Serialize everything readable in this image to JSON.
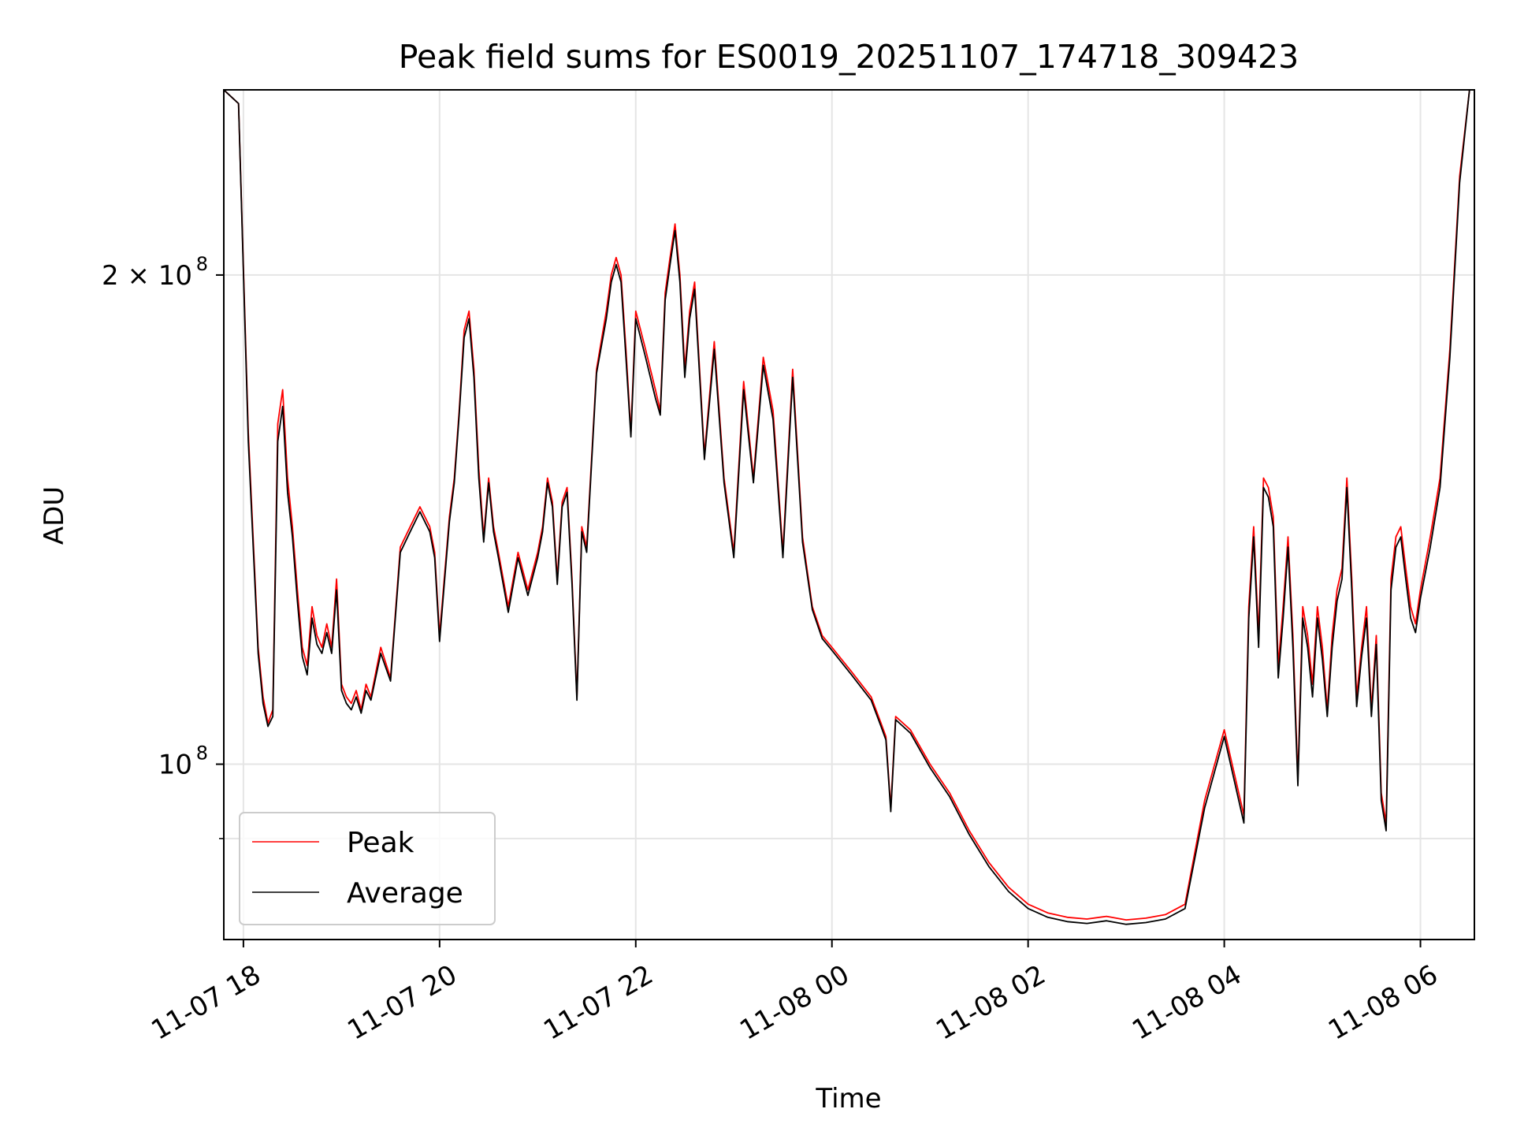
{
  "chart_data": {
    "type": "line",
    "title": "Peak field sums for ES0019_20251107_174718_309423",
    "xlabel": "Time",
    "ylabel": "ADU",
    "yscale": "log",
    "xlim": [
      17.8,
      30.55
    ],
    "ylim": [
      78000000,
      260000000
    ],
    "grid": true,
    "legend_position": "lower-left",
    "colors": {
      "peak": "#ff0000",
      "average": "#000000",
      "grid": "#e5e5e5"
    },
    "x_ticks": [
      {
        "value": 18,
        "label": "11-07 18"
      },
      {
        "value": 20,
        "label": "11-07 20"
      },
      {
        "value": 22,
        "label": "11-07 22"
      },
      {
        "value": 24,
        "label": "11-08 00"
      },
      {
        "value": 26,
        "label": "11-08 02"
      },
      {
        "value": 28,
        "label": "11-08 04"
      },
      {
        "value": 30,
        "label": "11-08 06"
      }
    ],
    "y_major_ticks": [
      {
        "value": 100000000,
        "base": "10",
        "exp": "8"
      },
      {
        "value": 200000000,
        "base": "2 × 10",
        "exp": "8"
      }
    ],
    "y_minor_ticks": [
      90000000
    ],
    "hours": [
      17.8,
      17.95,
      18.05,
      18.15,
      18.2,
      18.25,
      18.3,
      18.35,
      18.4,
      18.45,
      18.5,
      18.55,
      18.6,
      18.65,
      18.7,
      18.75,
      18.8,
      18.85,
      18.9,
      18.95,
      19.0,
      19.05,
      19.1,
      19.15,
      19.2,
      19.25,
      19.3,
      19.4,
      19.5,
      19.6,
      19.7,
      19.8,
      19.9,
      19.95,
      20.0,
      20.1,
      20.15,
      20.2,
      20.25,
      20.3,
      20.35,
      20.4,
      20.45,
      20.5,
      20.55,
      20.6,
      20.7,
      20.8,
      20.9,
      21.0,
      21.05,
      21.1,
      21.15,
      21.2,
      21.25,
      21.3,
      21.35,
      21.4,
      21.45,
      21.5,
      21.6,
      21.7,
      21.75,
      21.8,
      21.85,
      21.9,
      21.95,
      22.0,
      22.1,
      22.2,
      22.25,
      22.3,
      22.35,
      22.4,
      22.45,
      22.5,
      22.55,
      22.6,
      22.7,
      22.8,
      22.9,
      23.0,
      23.1,
      23.2,
      23.3,
      23.4,
      23.5,
      23.6,
      23.7,
      23.8,
      23.9,
      24.0,
      24.2,
      24.4,
      24.5,
      24.55,
      24.6,
      24.65,
      24.8,
      25.0,
      25.2,
      25.4,
      25.6,
      25.8,
      26.0,
      26.2,
      26.4,
      26.6,
      26.8,
      27.0,
      27.2,
      27.4,
      27.6,
      27.8,
      28.0,
      28.2,
      28.25,
      28.3,
      28.35,
      28.4,
      28.45,
      28.5,
      28.55,
      28.6,
      28.65,
      28.7,
      28.75,
      28.8,
      28.85,
      28.9,
      28.95,
      29.0,
      29.05,
      29.1,
      29.15,
      29.2,
      29.25,
      29.3,
      29.35,
      29.4,
      29.45,
      29.5,
      29.55,
      29.6,
      29.65,
      29.7,
      29.75,
      29.8,
      29.85,
      29.9,
      29.95,
      30.0,
      30.1,
      30.2,
      30.3,
      30.4,
      30.5
    ],
    "series": [
      {
        "name": "Peak",
        "values": [
          260000000,
          255000000,
          160000000,
          118000000,
          110000000,
          106000000,
          108000000,
          162000000,
          170000000,
          150000000,
          140000000,
          128000000,
          118000000,
          115000000,
          125000000,
          120000000,
          118000000,
          122000000,
          118000000,
          130000000,
          112000000,
          110000000,
          109000000,
          111000000,
          108000000,
          112000000,
          110000000,
          118000000,
          113000000,
          136000000,
          140000000,
          144000000,
          140000000,
          135000000,
          120000000,
          142000000,
          150000000,
          165000000,
          185000000,
          190000000,
          175000000,
          152000000,
          138000000,
          150000000,
          140000000,
          135000000,
          125000000,
          135000000,
          128000000,
          135000000,
          140000000,
          150000000,
          145000000,
          130000000,
          145000000,
          148000000,
          130000000,
          110000000,
          140000000,
          136000000,
          175000000,
          190000000,
          200000000,
          205000000,
          200000000,
          180000000,
          160000000,
          190000000,
          180000000,
          170000000,
          165000000,
          195000000,
          205000000,
          215000000,
          200000000,
          175000000,
          190000000,
          198000000,
          155000000,
          182000000,
          150000000,
          135000000,
          172000000,
          150000000,
          178000000,
          165000000,
          135000000,
          175000000,
          138000000,
          125000000,
          120000000,
          118000000,
          114000000,
          110000000,
          106000000,
          104000000,
          94000000,
          107000000,
          105000000,
          100000000,
          96000000,
          91000000,
          87000000,
          84000000,
          82000000,
          81000000,
          80500000,
          80300000,
          80600000,
          80200000,
          80400000,
          80800000,
          82000000,
          95000000,
          105000000,
          93000000,
          125000000,
          140000000,
          120000000,
          150000000,
          148000000,
          142000000,
          115000000,
          125000000,
          138000000,
          120000000,
          98000000,
          125000000,
          120000000,
          112000000,
          125000000,
          118000000,
          108000000,
          120000000,
          128000000,
          132000000,
          150000000,
          130000000,
          110000000,
          118000000,
          125000000,
          108000000,
          120000000,
          96000000,
          92000000,
          130000000,
          138000000,
          140000000,
          132000000,
          125000000,
          122000000,
          128000000,
          138000000,
          150000000,
          180000000,
          230000000,
          260000000
        ]
      },
      {
        "name": "Average",
        "values": [
          260000000,
          255000000,
          158000000,
          117000000,
          109000000,
          105500000,
          107000000,
          158000000,
          166000000,
          147000000,
          138000000,
          126000000,
          116500000,
          113500000,
          123000000,
          118500000,
          117000000,
          120500000,
          117000000,
          128000000,
          111000000,
          109000000,
          108000000,
          110000000,
          107500000,
          111000000,
          109500000,
          117000000,
          112500000,
          135000000,
          139000000,
          143000000,
          139000000,
          134000000,
          119000000,
          141000000,
          149000000,
          164000000,
          183000000,
          188000000,
          173000000,
          150000000,
          137000000,
          149000000,
          139000000,
          134000000,
          124000000,
          134000000,
          127000000,
          134000000,
          139000000,
          149000000,
          144000000,
          129000000,
          144000000,
          147000000,
          129000000,
          109500000,
          139000000,
          135000000,
          174000000,
          188000000,
          198000000,
          203000000,
          198000000,
          178000000,
          159000000,
          188000000,
          178000000,
          168000000,
          164000000,
          193000000,
          203000000,
          213000000,
          198000000,
          173000000,
          188000000,
          196000000,
          154000000,
          180000000,
          149000000,
          134000000,
          170000000,
          149000000,
          176000000,
          163000000,
          134000000,
          173000000,
          137000000,
          124500000,
          119500000,
          117500000,
          113500000,
          109500000,
          105500000,
          103500000,
          93500000,
          106500000,
          104500000,
          99500000,
          95500000,
          90500000,
          86500000,
          83500000,
          81500000,
          80500000,
          80000000,
          79800000,
          80100000,
          79700000,
          79900000,
          80300000,
          81500000,
          94000000,
          104000000,
          92000000,
          123000000,
          138000000,
          118000000,
          148000000,
          146000000,
          140000000,
          113000000,
          123000000,
          136000000,
          118000000,
          97000000,
          123000000,
          118000000,
          110000000,
          123000000,
          116000000,
          107000000,
          118000000,
          126000000,
          130000000,
          148000000,
          128000000,
          108500000,
          116500000,
          123000000,
          107000000,
          118500000,
          95000000,
          91000000,
          128000000,
          136000000,
          138000000,
          130000000,
          123000000,
          120500000,
          126500000,
          136000000,
          148000000,
          178000000,
          228000000,
          260000000
        ]
      }
    ]
  }
}
